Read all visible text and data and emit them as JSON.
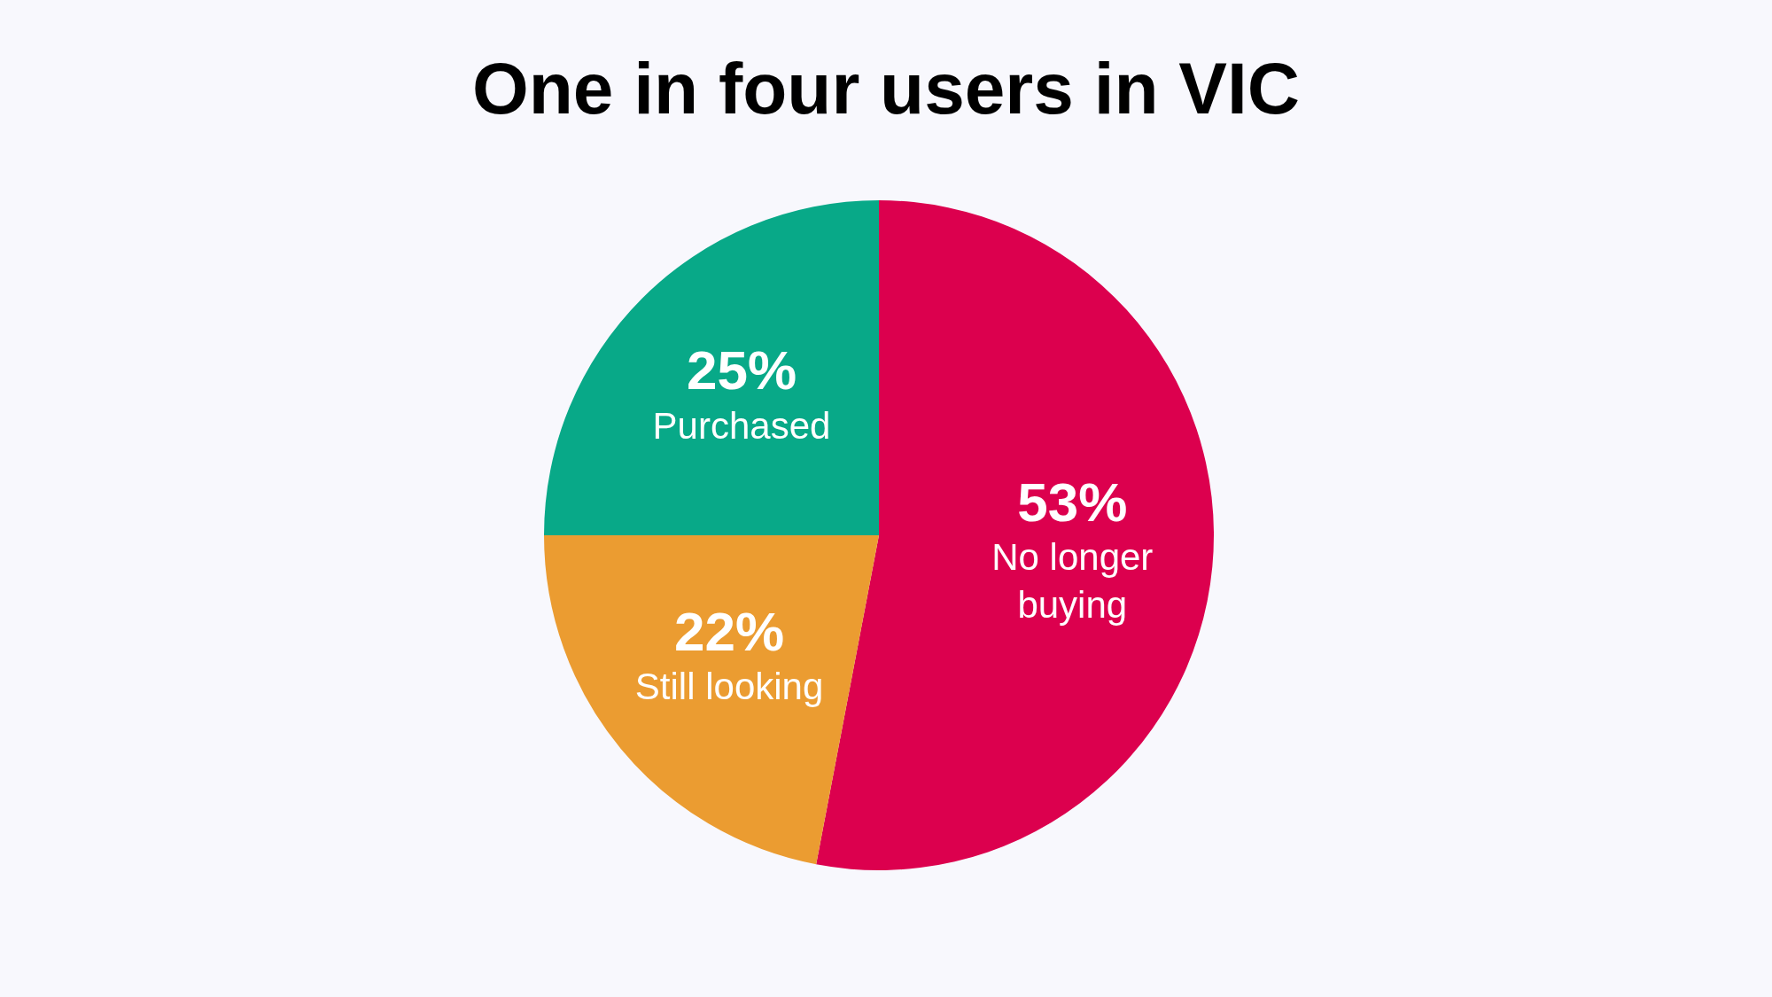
{
  "chart_data": {
    "type": "pie",
    "title": "One in four users in VIC",
    "categories": [
      "No longer buying",
      "Still looking",
      "Purchased"
    ],
    "values": [
      53,
      22,
      25
    ],
    "colors": [
      "#dc004e",
      "#eb9c31",
      "#08a988"
    ],
    "value_labels": [
      "53%",
      "22%",
      "25%"
    ]
  }
}
